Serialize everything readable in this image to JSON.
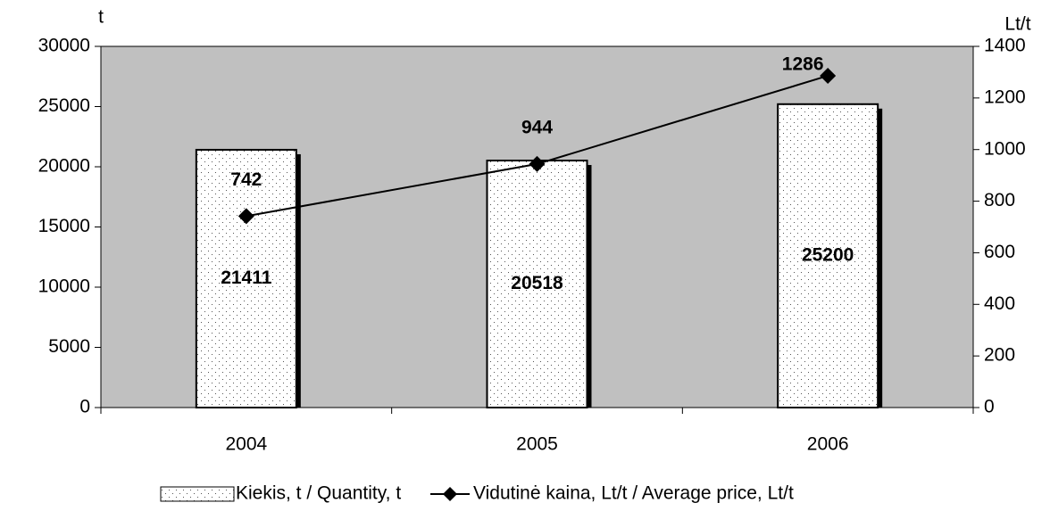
{
  "chart_data": {
    "type": "bar",
    "categories": [
      "2004",
      "2005",
      "2006"
    ],
    "y_label": "t",
    "y2_label": "Lt/t",
    "series": [
      {
        "name": "Kiekis, t / Quantity, t",
        "color": "#ffffff",
        "values": [
          21411,
          20518,
          25200
        ]
      },
      {
        "name": "Vidutinė kaina, Lt/t / Average price, Lt/t",
        "type": "line",
        "axis": "y2",
        "color": "#000000",
        "values": [
          742,
          944,
          1286
        ]
      }
    ],
    "ylim": [
      0,
      30000
    ],
    "yticks": [
      0,
      5000,
      10000,
      15000,
      20000,
      25000,
      30000
    ],
    "y2lim": [
      0,
      1400
    ],
    "y2ticks": [
      0,
      200,
      400,
      600,
      800,
      1000,
      1200,
      1400
    ],
    "grid": false,
    "legend": "bottom",
    "background": "#c0c0c0"
  }
}
